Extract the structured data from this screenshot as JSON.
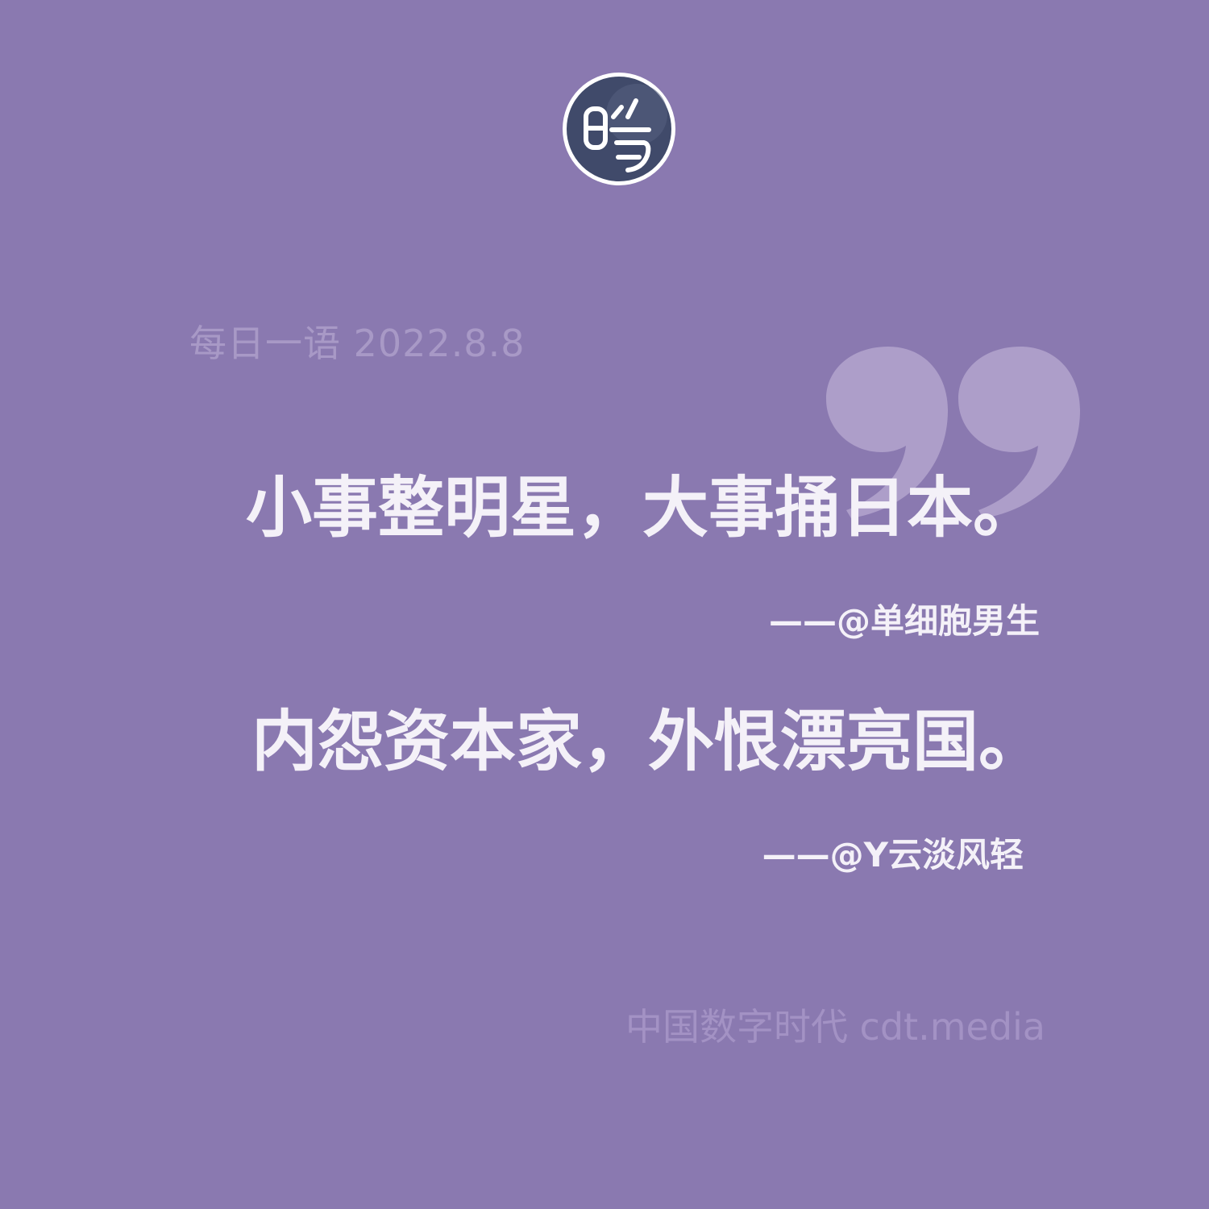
{
  "colors": {
    "background": "#8a79b0",
    "quote_text": "#f4f1f8",
    "muted_text": "#a899c6",
    "quote_mark": "#ad9ec9",
    "logo_fill": "#404a6a"
  },
  "logo": {
    "icon": "cdt-seal-logo-icon"
  },
  "header": {
    "date_line": "每日一语 2022.8.8"
  },
  "decoration": {
    "icon": "closing-quote-icon"
  },
  "quotes": [
    {
      "text": "小事整明星，大事捅日本。",
      "author": "——@单细胞男生"
    },
    {
      "text": "内怨资本家，外恨漂亮国。",
      "author": "——@Y云淡风轻"
    }
  ],
  "footer": {
    "brand": "中国数字时代 cdt.media"
  }
}
